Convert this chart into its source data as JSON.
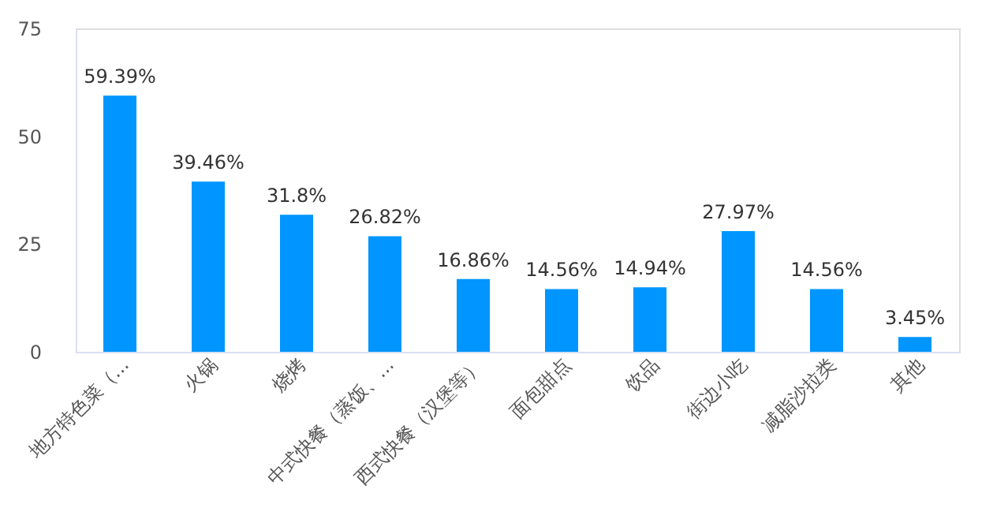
{
  "chart_data": {
    "type": "bar",
    "categories": [
      "地方特色菜（...",
      "火锅",
      "烧烤",
      "中式快餐（蒸饭、...",
      "西式快餐（汉堡等）",
      "面包甜点",
      "饮品",
      "街边小吃",
      "减脂沙拉类",
      "其他"
    ],
    "values": [
      59.39,
      39.46,
      31.8,
      26.82,
      16.86,
      14.56,
      14.94,
      27.97,
      14.56,
      3.45
    ],
    "value_labels": [
      "59.39%",
      "39.46%",
      "31.8%",
      "26.82%",
      "16.86%",
      "14.56%",
      "14.94%",
      "27.97%",
      "14.56%",
      "3.45%"
    ],
    "color": "#0095ff",
    "ylim": [
      0,
      75
    ],
    "yticks": [
      0,
      25,
      50,
      75
    ],
    "grid": false
  }
}
